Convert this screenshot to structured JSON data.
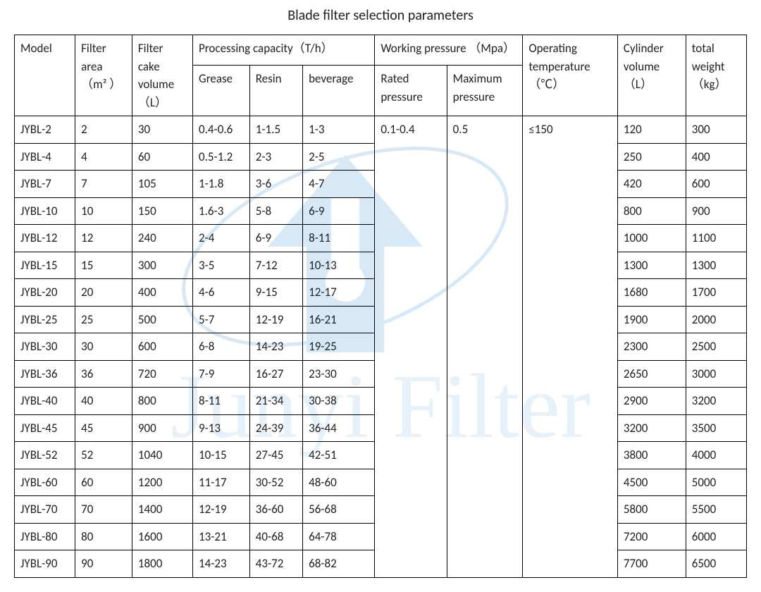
{
  "title": "Blade filter selection parameters",
  "headers": {
    "model": "Model",
    "filter_area": "Filter area （m² ）",
    "filter_cake_volume": "Filter cake volume （L）",
    "processing_capacity": "Processing capacity（T/h）",
    "grease": "Grease",
    "resin": "Resin",
    "beverage": "beverage",
    "working_pressure": "Working pressure （Mpa）",
    "rated_pressure": "Rated pressure",
    "max_pressure": "Maximum pressure",
    "operating_temperature": "Operating temperature（℃）",
    "cylinder_volume": "Cylinder volume （L）",
    "total_weight": "total weight （kg）"
  },
  "shared": {
    "rated_pressure": "0.1-0.4",
    "max_pressure": "0.5",
    "temperature": "≤150"
  },
  "rows": [
    {
      "model": "JYBL-2",
      "area": "2",
      "cake": "30",
      "grease": "0.4-0.6",
      "resin": "1-1.5",
      "bev": "1-3",
      "cyl": "120",
      "wt": "300"
    },
    {
      "model": "JYBL-4",
      "area": "4",
      "cake": "60",
      "grease": "0.5-1.2",
      "resin": "2-3",
      "bev": "2-5",
      "cyl": "250",
      "wt": "400"
    },
    {
      "model": "JYBL-7",
      "area": "7",
      "cake": "105",
      "grease": "1-1.8",
      "resin": "3-6",
      "bev": "4-7",
      "cyl": "420",
      "wt": "600"
    },
    {
      "model": "JYBL-10",
      "area": "10",
      "cake": "150",
      "grease": "1.6-3",
      "resin": "5-8",
      "bev": "6-9",
      "cyl": "800",
      "wt": "900"
    },
    {
      "model": "JYBL-12",
      "area": "12",
      "cake": "240",
      "grease": "2-4",
      "resin": "6-9",
      "bev": "8-11",
      "cyl": "1000",
      "wt": "1100"
    },
    {
      "model": "JYBL-15",
      "area": "15",
      "cake": "300",
      "grease": "3-5",
      "resin": "7-12",
      "bev": "10-13",
      "cyl": "1300",
      "wt": "1300"
    },
    {
      "model": "JYBL-20",
      "area": "20",
      "cake": "400",
      "grease": "4-6",
      "resin": "9-15",
      "bev": "12-17",
      "cyl": "1680",
      "wt": "1700"
    },
    {
      "model": "JYBL-25",
      "area": "25",
      "cake": "500",
      "grease": "5-7",
      "resin": "12-19",
      "bev": "16-21",
      "cyl": "1900",
      "wt": "2000"
    },
    {
      "model": "JYBL-30",
      "area": "30",
      "cake": "600",
      "grease": "6-8",
      "resin": "14-23",
      "bev": "19-25",
      "cyl": "2300",
      "wt": "2500"
    },
    {
      "model": "JYBL-36",
      "area": "36",
      "cake": "720",
      "grease": "7-9",
      "resin": "16-27",
      "bev": "23-30",
      "cyl": "2650",
      "wt": "3000"
    },
    {
      "model": "JYBL-40",
      "area": "40",
      "cake": "800",
      "grease": "8-11",
      "resin": "21-34",
      "bev": "30-38",
      "cyl": "2900",
      "wt": "3200"
    },
    {
      "model": "JYBL-45",
      "area": "45",
      "cake": "900",
      "grease": "9-13",
      "resin": "24-39",
      "bev": "36-44",
      "cyl": "3200",
      "wt": "3500"
    },
    {
      "model": "JYBL-52",
      "area": "52",
      "cake": "1040",
      "grease": "10-15",
      "resin": "27-45",
      "bev": "42-51",
      "cyl": "3800",
      "wt": "4000"
    },
    {
      "model": "JYBL-60",
      "area": "60",
      "cake": "1200",
      "grease": "11-17",
      "resin": "30-52",
      "bev": "48-60",
      "cyl": "4500",
      "wt": "5000"
    },
    {
      "model": "JYBL-70",
      "area": "70",
      "cake": "1400",
      "grease": "12-19",
      "resin": "36-60",
      "bev": "56-68",
      "cyl": "5800",
      "wt": "5500"
    },
    {
      "model": "JYBL-80",
      "area": "80",
      "cake": "1600",
      "grease": "13-21",
      "resin": "40-68",
      "bev": "64-78",
      "cyl": "7200",
      "wt": "6000"
    },
    {
      "model": "JYBL-90",
      "area": "90",
      "cake": "1800",
      "grease": "14-23",
      "resin": "43-72",
      "bev": "68-82",
      "cyl": "7700",
      "wt": "6500"
    }
  ],
  "watermark": {
    "text": "Junyi Filter",
    "logo_color": "#8fc3e8",
    "text_color": "#b8d8ef"
  }
}
